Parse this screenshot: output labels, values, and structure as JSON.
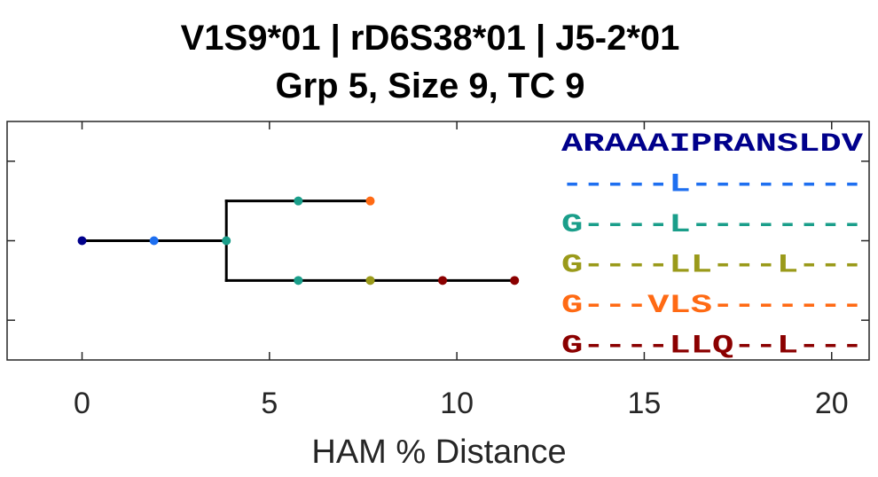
{
  "chart_data": {
    "type": "tree",
    "title_lines": [
      "V1S9*01 | rD6S38*01 | J5-2*01",
      "Grp 5, Size 9, TC 9"
    ],
    "xlabel": "HAM % Distance",
    "xlim": [
      -2,
      21
    ],
    "xticks": [
      0,
      5,
      10,
      15,
      20
    ],
    "ylim": [
      0.5,
      3.5
    ],
    "grid": false,
    "tree_edges": [
      {
        "x1": 0,
        "y1": 2,
        "x2": 3.85,
        "y2": 2
      },
      {
        "x1": 3.85,
        "y1": 1.5,
        "x2": 3.85,
        "y2": 2.5
      },
      {
        "x1": 3.85,
        "y1": 2.5,
        "x2": 7.69,
        "y2": 2.5
      },
      {
        "x1": 3.85,
        "y1": 1.5,
        "x2": 11.54,
        "y2": 1.5
      }
    ],
    "nodes": [
      {
        "x": 0,
        "y": 2,
        "color": "#00008b"
      },
      {
        "x": 1.92,
        "y": 2,
        "color": "#1e6ff0"
      },
      {
        "x": 3.85,
        "y": 2,
        "color": "#1a9e8a"
      },
      {
        "x": 5.77,
        "y": 2.5,
        "color": "#1a9e8a"
      },
      {
        "x": 7.69,
        "y": 2.5,
        "color": "#ff6a14"
      },
      {
        "x": 5.77,
        "y": 1.5,
        "color": "#1a9e8a"
      },
      {
        "x": 7.69,
        "y": 1.5,
        "color": "#9a9a1a"
      },
      {
        "x": 9.62,
        "y": 1.5,
        "color": "#8b0000"
      },
      {
        "x": 11.54,
        "y": 1.5,
        "color": "#8b0000"
      }
    ],
    "sequences": [
      {
        "text": "ARAAAIPRANSLDV",
        "color": "#00008b"
      },
      {
        "text": "-----L--------",
        "color": "#1e6ff0"
      },
      {
        "text": "G----L--------",
        "color": "#1a9e8a"
      },
      {
        "text": "G----LL---L---",
        "color": "#9a9a1a"
      },
      {
        "text": "G---VLS-------",
        "color": "#ff6a14"
      },
      {
        "text": "G----LLQ--L---",
        "color": "#8b0000"
      }
    ]
  }
}
